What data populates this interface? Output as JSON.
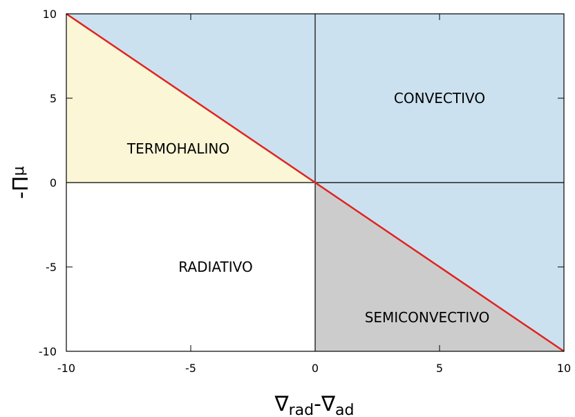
{
  "chart_data": {
    "type": "area",
    "title": "",
    "xlabel": {
      "base1": "∇",
      "sub1": "rad",
      "sep": "-",
      "base2": "∇",
      "sub2": "ad"
    },
    "ylabel": {
      "base": "-Π",
      "sub": "μ"
    },
    "xlim": [
      -10,
      10
    ],
    "ylim": [
      -10,
      10
    ],
    "x_ticks": [
      -10,
      -5,
      0,
      5,
      10
    ],
    "y_ticks": [
      -10,
      -5,
      0,
      5,
      10
    ],
    "grid": false,
    "reference_line": {
      "x": [
        -10,
        10
      ],
      "y": [
        10,
        -10
      ],
      "color": "#e0231f"
    },
    "zero_lines": true,
    "regions": [
      {
        "name": "CONVECTIVO",
        "color": "#cce1ef",
        "polygon": [
          [
            -10,
            10
          ],
          [
            10,
            10
          ],
          [
            10,
            -10
          ],
          [
            0,
            0
          ]
        ],
        "label_at": [
          5,
          5
        ]
      },
      {
        "name": "TERMOHALINO",
        "color": "#faf6d6",
        "polygon": [
          [
            -10,
            10
          ],
          [
            0,
            0
          ],
          [
            -10,
            0
          ]
        ],
        "label_at": [
          -5.5,
          2
        ]
      },
      {
        "name": "RADIATIVO",
        "color": "#ffffff",
        "polygon": [
          [
            -10,
            0
          ],
          [
            0,
            0
          ],
          [
            0,
            -10
          ],
          [
            -10,
            -10
          ]
        ],
        "label_at": [
          -4,
          -5
        ]
      },
      {
        "name": "SEMICONVECTIVO",
        "color": "#cccccc",
        "polygon": [
          [
            0,
            0
          ],
          [
            10,
            -10
          ],
          [
            0,
            -10
          ]
        ],
        "label_at": [
          4.5,
          -8
        ]
      }
    ]
  }
}
